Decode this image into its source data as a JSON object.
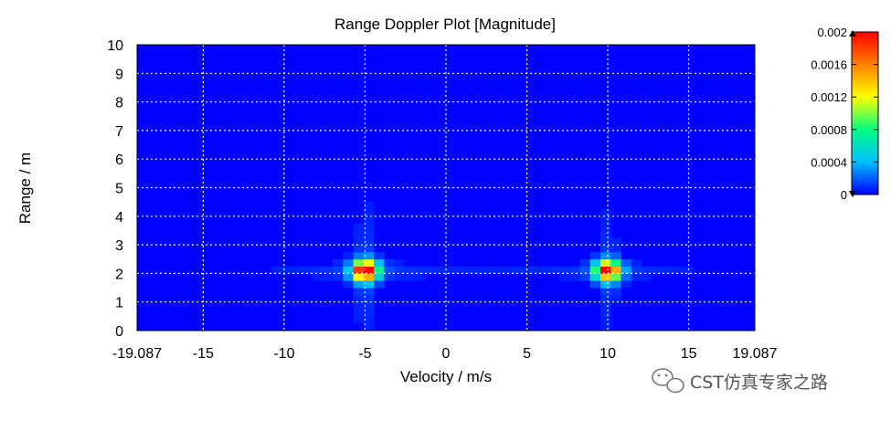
{
  "chart_data": {
    "type": "heatmap",
    "title": "Range Doppler Plot [Magnitude]",
    "xlabel": "Velocity / m/s",
    "ylabel": "Range / m",
    "xlim": [
      -19.087,
      19.087
    ],
    "ylim": [
      0,
      10
    ],
    "x_ticks": [
      -19.087,
      -15,
      -10,
      -5,
      0,
      5,
      10,
      15,
      19.087
    ],
    "x_tick_labels": [
      "-19.087",
      "-15",
      "-10",
      "-5",
      "0",
      "5",
      "10",
      "15",
      "19.087"
    ],
    "y_ticks": [
      0,
      1,
      2,
      3,
      4,
      5,
      6,
      7,
      8,
      9,
      10
    ],
    "y_tick_labels": [
      "0",
      "1",
      "2",
      "3",
      "4",
      "5",
      "6",
      "7",
      "8",
      "9",
      "10"
    ],
    "grid": true,
    "colorbar": {
      "min": 0,
      "max": 0.002,
      "ticks": [
        0,
        0.0004,
        0.0008,
        0.0012,
        0.0016,
        0.002
      ],
      "tick_labels": [
        "0",
        "0.0004",
        "0.0008",
        "0.0012",
        "0.0016",
        "0.002"
      ],
      "colormap": [
        "#0000ff",
        "#00bfff",
        "#00ff80",
        "#ffff00",
        "#ff8000",
        "#ff0000"
      ]
    },
    "peaks": [
      {
        "velocity": -5,
        "range": 2.1,
        "magnitude": 0.002
      },
      {
        "velocity": 10,
        "range": 2.1,
        "magnitude": 0.0018
      }
    ]
  },
  "watermark": {
    "text": "CST仿真专家之路",
    "icon": "wechat-icon"
  }
}
